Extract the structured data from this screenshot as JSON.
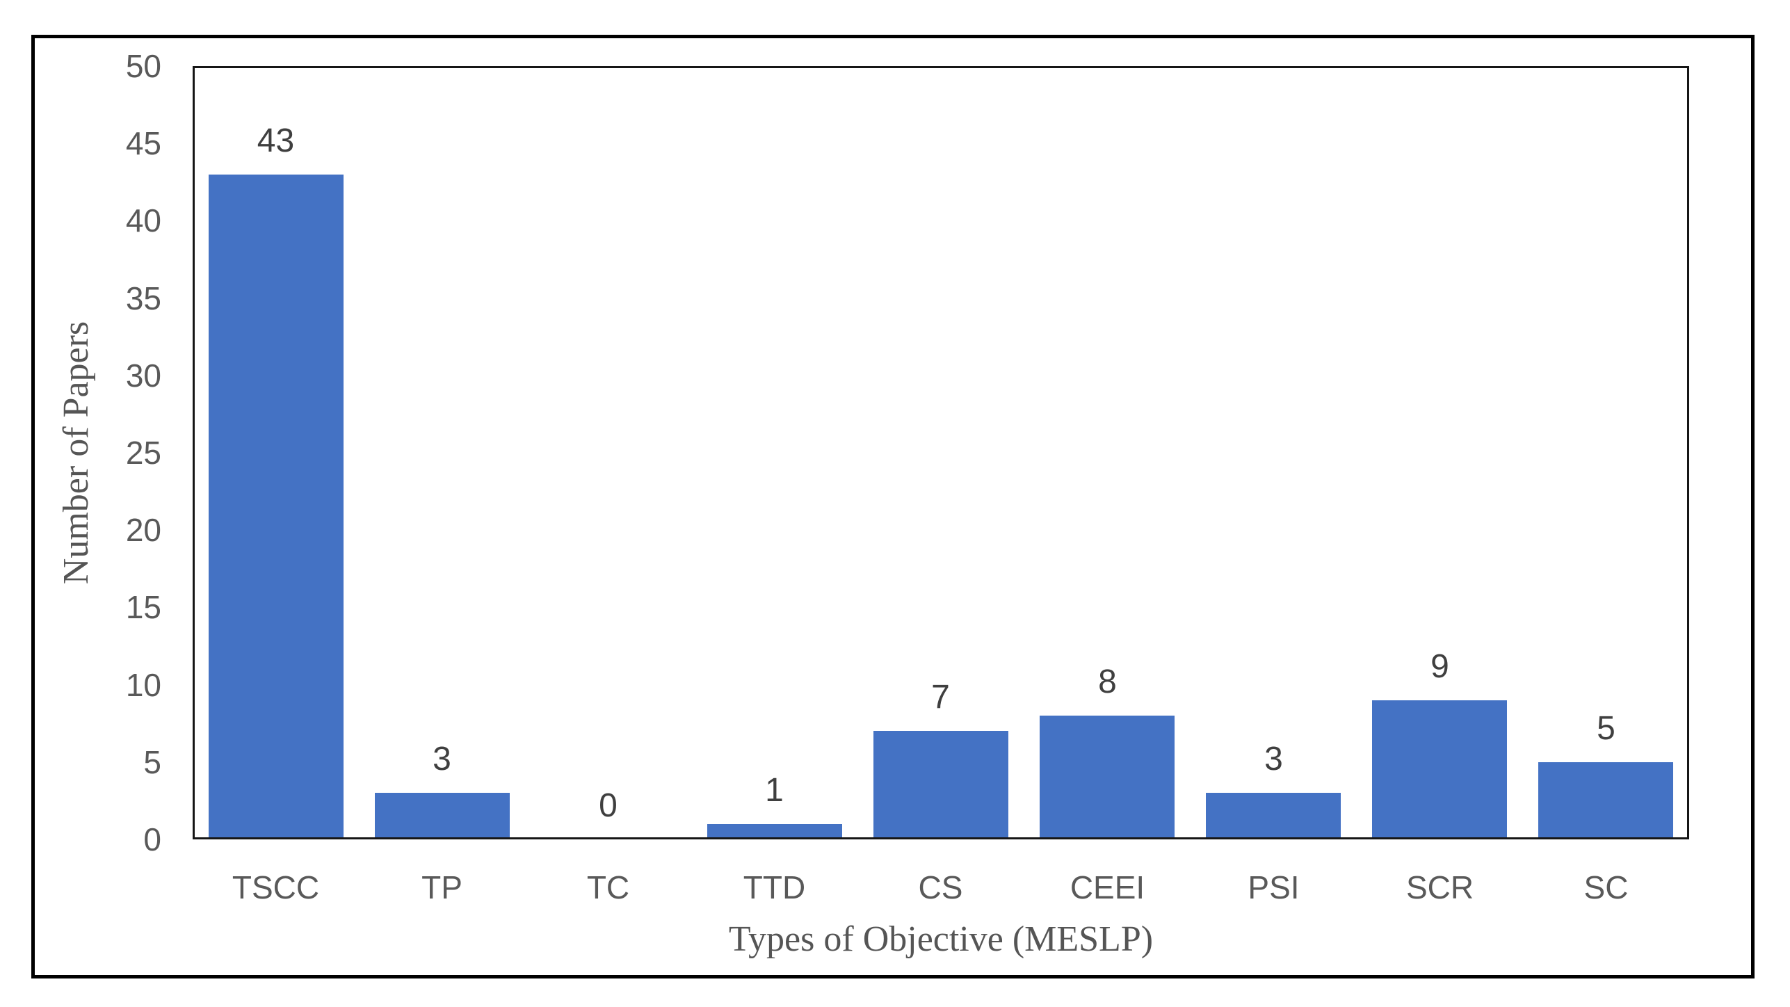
{
  "chart_data": {
    "type": "bar",
    "categories": [
      "TSCC",
      "TP",
      "TC",
      "TTD",
      "CS",
      "CEEI",
      "PSI",
      "SCR",
      "SC"
    ],
    "values": [
      43,
      3,
      0,
      1,
      7,
      8,
      3,
      9,
      5
    ],
    "title": "",
    "xlabel": "Types of Objective (MESLP)",
    "ylabel": "Number of Papers",
    "ylim": [
      0,
      50
    ],
    "yticks": [
      0,
      5,
      10,
      15,
      20,
      25,
      30,
      35,
      40,
      45,
      50
    ],
    "grid": false,
    "legend": false,
    "data_labels_shown": true
  },
  "colors": {
    "bar": "#4472C4",
    "tick_label": "#595959",
    "value_label": "#3f3f3f",
    "axis_title": "#555555",
    "plot_border": "#161616",
    "figure_border": "#000000",
    "background": "#ffffff"
  }
}
